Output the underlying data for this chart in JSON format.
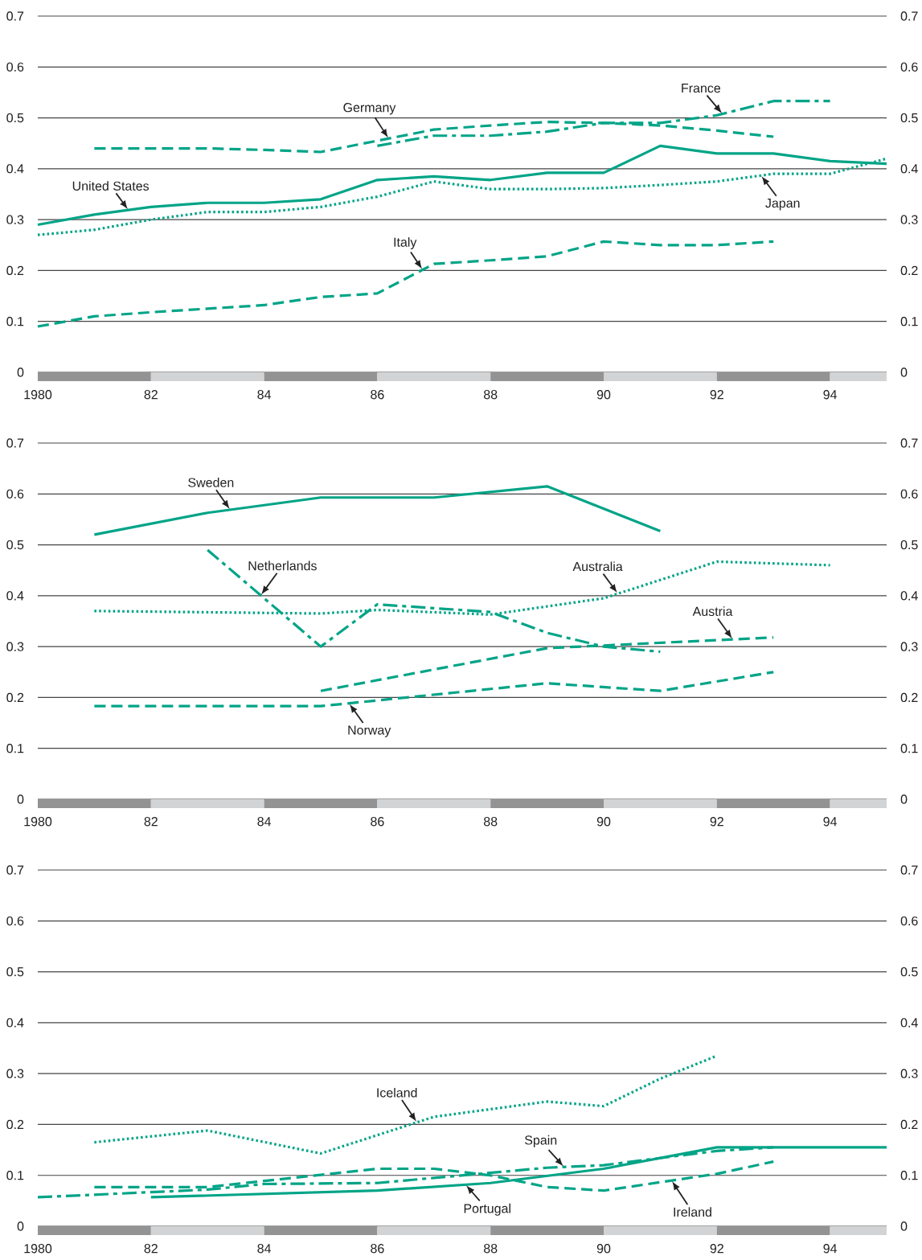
{
  "chart_data": [
    {
      "type": "line",
      "xlim": [
        1980,
        1995
      ],
      "xticks": [
        1980,
        {
          "value": 1982,
          "label": "82"
        },
        {
          "value": 1984,
          "label": "84"
        },
        {
          "value": 1986,
          "label": "86"
        },
        {
          "value": 1988,
          "label": "88"
        },
        {
          "value": 1990,
          "label": "90"
        },
        {
          "value": 1992,
          "label": "92"
        },
        {
          "value": 1994,
          "label": "94"
        }
      ],
      "ylim": [
        0,
        0.7
      ],
      "yticks": [
        0,
        0.1,
        0.2,
        0.3,
        0.4,
        0.5,
        0.6,
        0.7
      ],
      "y2lim": [
        0,
        0.7
      ],
      "y2ticks": [
        0,
        0.1,
        0.2,
        0.3,
        0.4,
        0.5,
        0.6,
        0.7
      ],
      "grid": "y",
      "series": [
        {
          "name": "United States",
          "color": "#00a487",
          "line_style": "solid",
          "x": [
            1980,
            1981,
            1982,
            1983,
            1984,
            1985,
            1986,
            1987,
            1988,
            1989,
            1990,
            1991,
            1992,
            1993,
            1994,
            1995
          ],
          "values": [
            0.29,
            0.31,
            0.325,
            0.333,
            0.333,
            0.34,
            0.378,
            0.385,
            0.378,
            0.392,
            0.392,
            0.445,
            0.43,
            0.43,
            0.415,
            0.41
          ]
        },
        {
          "name": "Japan",
          "color": "#00a487",
          "line_style": "dotted",
          "x": [
            1980,
            1981,
            1982,
            1983,
            1984,
            1985,
            1986,
            1987,
            1988,
            1989,
            1990,
            1991,
            1992,
            1993,
            1994,
            1995
          ],
          "values": [
            0.27,
            0.28,
            0.3,
            0.315,
            0.315,
            0.325,
            0.345,
            0.375,
            0.36,
            0.36,
            0.362,
            0.368,
            0.375,
            0.39,
            0.39,
            0.42
          ]
        },
        {
          "name": "Italy",
          "color": "#00a487",
          "line_style": "dashed",
          "x": [
            1980,
            1981,
            1982,
            1983,
            1984,
            1985,
            1986,
            1987,
            1988,
            1989,
            1990,
            1991,
            1992,
            1993
          ],
          "values": [
            0.09,
            0.11,
            0.118,
            0.125,
            0.132,
            0.148,
            0.155,
            0.213,
            0.22,
            0.228,
            0.257,
            0.25,
            0.25,
            0.257
          ]
        },
        {
          "name": "Germany",
          "color": "#00a487",
          "line_style": "dashed",
          "x": [
            1981,
            1982,
            1983,
            1984,
            1985,
            1986,
            1987,
            1988,
            1989,
            1990,
            1991,
            1992,
            1993
          ],
          "values": [
            0.44,
            0.44,
            0.44,
            0.437,
            0.433,
            0.455,
            0.477,
            0.485,
            0.492,
            0.49,
            0.485,
            0.475,
            0.463
          ]
        },
        {
          "name": "France",
          "color": "#00a487",
          "line_style": "dashdot",
          "x": [
            1986,
            1987,
            1988,
            1989,
            1990,
            1991,
            1992,
            1993,
            1994
          ],
          "values": [
            0.445,
            0.465,
            0.465,
            0.473,
            0.49,
            0.49,
            0.505,
            0.533,
            0.533
          ]
        }
      ]
    },
    {
      "type": "line",
      "xlim": [
        1980,
        1995
      ],
      "xticks": [
        1980,
        {
          "value": 1982,
          "label": "82"
        },
        {
          "value": 1984,
          "label": "84"
        },
        {
          "value": 1986,
          "label": "86"
        },
        {
          "value": 1988,
          "label": "88"
        },
        {
          "value": 1990,
          "label": "90"
        },
        {
          "value": 1992,
          "label": "92"
        },
        {
          "value": 1994,
          "label": "94"
        }
      ],
      "ylim": [
        0,
        0.7
      ],
      "yticks": [
        0,
        0.1,
        0.2,
        0.3,
        0.4,
        0.5,
        0.6,
        0.7
      ],
      "y2lim": [
        0,
        0.7
      ],
      "y2ticks": [
        0,
        0.1,
        0.2,
        0.3,
        0.4,
        0.5,
        0.6,
        0.7
      ],
      "grid": "y",
      "series": [
        {
          "name": "Sweden",
          "color": "#00a487",
          "line_style": "solid",
          "x": [
            1981,
            1983,
            1985,
            1987,
            1989,
            1991
          ],
          "values": [
            0.52,
            0.563,
            0.593,
            0.593,
            0.615,
            0.527
          ]
        },
        {
          "name": "Netherlands",
          "color": "#00a487",
          "line_style": "dashdot",
          "x": [
            1983,
            1985,
            1986,
            1988,
            1989,
            1990,
            1991
          ],
          "values": [
            0.49,
            0.3,
            0.383,
            0.368,
            0.327,
            0.3,
            0.29
          ]
        },
        {
          "name": "Australia",
          "color": "#00a487",
          "line_style": "dotted",
          "x": [
            1981,
            1985,
            1986,
            1988,
            1990,
            1992,
            1994
          ],
          "values": [
            0.37,
            0.365,
            0.372,
            0.363,
            0.395,
            0.467,
            0.46
          ]
        },
        {
          "name": "Austria",
          "color": "#00a487",
          "line_style": "dashed",
          "x": [
            1985,
            1989,
            1993
          ],
          "values": [
            0.213,
            0.297,
            0.318
          ]
        },
        {
          "name": "Norway",
          "color": "#00a487",
          "line_style": "dashed",
          "x": [
            1981,
            1985,
            1989,
            1991,
            1993
          ],
          "values": [
            0.183,
            0.183,
            0.228,
            0.213,
            0.25
          ]
        }
      ]
    },
    {
      "type": "line",
      "xlim": [
        1980,
        1995
      ],
      "xticks": [
        1980,
        {
          "value": 1982,
          "label": "82"
        },
        {
          "value": 1984,
          "label": "84"
        },
        {
          "value": 1986,
          "label": "86"
        },
        {
          "value": 1988,
          "label": "88"
        },
        {
          "value": 1990,
          "label": "90"
        },
        {
          "value": 1992,
          "label": "92"
        },
        {
          "value": 1994,
          "label": "94"
        }
      ],
      "ylim": [
        0,
        0.7
      ],
      "yticks": [
        0,
        0.1,
        0.2,
        0.3,
        0.4,
        0.5,
        0.6,
        0.7
      ],
      "y2lim": [
        0,
        0.7
      ],
      "y2ticks": [
        0,
        0.1,
        0.2,
        0.3,
        0.4,
        0.5,
        0.6,
        0.7
      ],
      "grid": "y",
      "series": [
        {
          "name": "Iceland",
          "color": "#00a487",
          "line_style": "dotted",
          "x": [
            1981,
            1983,
            1985,
            1987,
            1989,
            1990,
            1991,
            1992
          ],
          "values": [
            0.165,
            0.188,
            0.143,
            0.215,
            0.245,
            0.236,
            0.29,
            0.335
          ]
        },
        {
          "name": "Spain",
          "color": "#00a487",
          "line_style": "dashdot",
          "x": [
            1980,
            1983,
            1984,
            1986,
            1989,
            1990,
            1992,
            1993
          ],
          "values": [
            0.057,
            0.072,
            0.083,
            0.085,
            0.115,
            0.12,
            0.148,
            0.155
          ]
        },
        {
          "name": "Portugal",
          "color": "#00a487",
          "line_style": "solid",
          "x": [
            1982,
            1986,
            1988,
            1990,
            1992,
            1995
          ],
          "values": [
            0.057,
            0.07,
            0.085,
            0.113,
            0.155,
            0.155
          ]
        },
        {
          "name": "Ireland",
          "color": "#00a487",
          "line_style": "dashed",
          "x": [
            1981,
            1983,
            1986,
            1987,
            1988,
            1989,
            1990,
            1992,
            1993
          ],
          "values": [
            0.077,
            0.077,
            0.113,
            0.113,
            0.1,
            0.077,
            0.07,
            0.103,
            0.127
          ]
        }
      ]
    }
  ]
}
